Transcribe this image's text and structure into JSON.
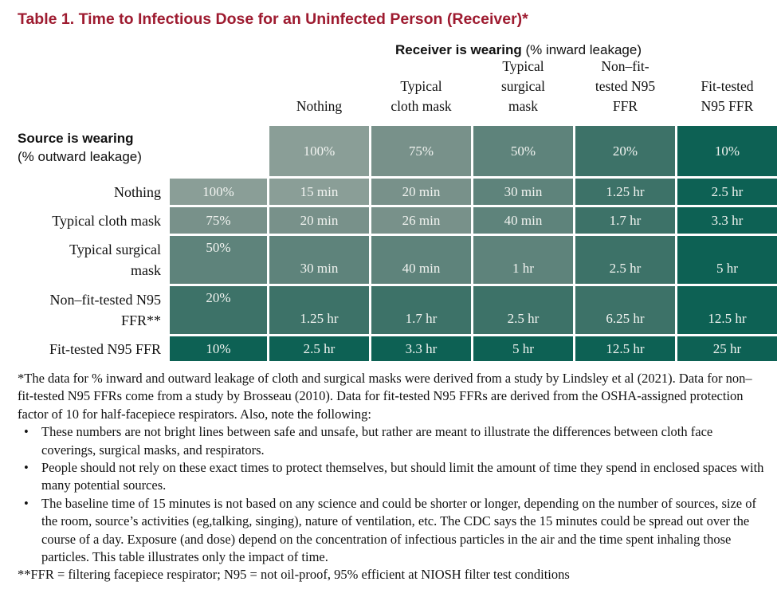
{
  "title": {
    "text": "Table 1. Time to Infectious Dose for an Uninfected Person (Receiver)*"
  },
  "receiver_header": {
    "bold": "Receiver is wearing",
    "normal": " (% inward leakage)"
  },
  "source_header": {
    "bold": "Source is wearing",
    "normal": "(% outward leakage)"
  },
  "columns": [
    {
      "label_lines": [
        "Nothing"
      ],
      "pct": "100%"
    },
    {
      "label_lines": [
        "Typical",
        "cloth mask"
      ],
      "pct": "75%"
    },
    {
      "label_lines": [
        "Typical",
        "surgical",
        "mask"
      ],
      "pct": "50%"
    },
    {
      "label_lines": [
        "Non–fit-",
        "tested N95",
        "FFR"
      ],
      "pct": "20%"
    },
    {
      "label_lines": [
        "Fit-tested",
        "N95 FFR"
      ],
      "pct": "10%"
    }
  ],
  "rows": [
    {
      "label_lines": [
        "Nothing"
      ],
      "pct": "100%",
      "values": [
        "15 min",
        "20 min",
        "30 min",
        "1.25 hr",
        "2.5 hr"
      ]
    },
    {
      "label_lines": [
        "Typical cloth mask"
      ],
      "pct": "75%",
      "values": [
        "20 min",
        "26 min",
        "40 min",
        "1.7 hr",
        "3.3 hr"
      ]
    },
    {
      "label_lines": [
        "Typical surgical",
        "mask"
      ],
      "pct": "50%",
      "values": [
        "30 min",
        "40 min",
        "1 hr",
        "2.5 hr",
        "5 hr"
      ]
    },
    {
      "label_lines": [
        "Non–fit-tested N95",
        "FFR**"
      ],
      "pct": "20%",
      "values": [
        "1.25 hr",
        "1.7 hr",
        "2.5 hr",
        "6.25 hr",
        "12.5 hr"
      ]
    },
    {
      "label_lines": [
        "Fit-tested N95 FFR"
      ],
      "pct": "10%",
      "values": [
        "2.5 hr",
        "3.3 hr",
        "5 hr",
        "12.5 hr",
        "25 hr"
      ]
    }
  ],
  "colors": {
    "title": "#9E1B30",
    "levels": [
      "#8A9E97",
      "#78918A",
      "#5E837B",
      "#3D7268",
      "#0D6154"
    ]
  },
  "footnotes": {
    "note1": "*The data for % inward and outward leakage of cloth and surgical masks were derived from a study by Lindsley et al (2021). Data for non–fit-tested N95 FFRs come from a study by Brosseau (2010). Data for fit-tested N95 FFRs are derived from the OSHA-assigned protection factor of 10 for half-facepiece respirators. Also, note the following:",
    "bullet_char": "•",
    "bullets": [
      "These numbers are not bright lines between safe and unsafe, but rather are meant to illustrate the differences between cloth face coverings, surgical masks, and respirators.",
      "People should not rely on these exact times to protect themselves, but should limit the amount of time they spend in enclosed spaces with many potential sources.",
      "The baseline time of 15 minutes is not based on any science and could be shorter or longer, depending on the number of sources, size of the room, source’s activities (eg,talking, singing), nature of ventilation, etc. The CDC says the 15 minutes could be spread out over the course of a day. Exposure (and dose) depend on the concentration of infectious particles in the air and the time spent inhaling those particles. This table illustrates only the impact of time."
    ],
    "note2": "**FFR = filtering facepiece respirator; N95 = not oil-proof, 95% efficient at NIOSH filter test conditions"
  },
  "chart_data": {
    "type": "table",
    "title": "Table 1. Time to Infectious Dose for an Uninfected Person (Receiver)*",
    "column_axis": "Receiver is wearing (% inward leakage)",
    "row_axis": "Source is wearing (% outward leakage)",
    "categories": [
      "Nothing 100%",
      "Typical cloth mask 75%",
      "Typical surgical mask 50%",
      "Non–fit-tested N95 FFR 20%",
      "Fit-tested N95 FFR 10%"
    ],
    "series": [
      {
        "name": "Nothing 100%",
        "values": [
          "15 min",
          "20 min",
          "30 min",
          "1.25 hr",
          "2.5 hr"
        ]
      },
      {
        "name": "Typical cloth mask 75%",
        "values": [
          "20 min",
          "26 min",
          "40 min",
          "1.7 hr",
          "3.3 hr"
        ]
      },
      {
        "name": "Typical surgical mask 50%",
        "values": [
          "30 min",
          "40 min",
          "1 hr",
          "2.5 hr",
          "5 hr"
        ]
      },
      {
        "name": "Non–fit-tested N95 FFR 20%",
        "values": [
          "1.25 hr",
          "1.7 hr",
          "2.5 hr",
          "6.25 hr",
          "12.5 hr"
        ]
      },
      {
        "name": "Fit-tested N95 FFR 10%",
        "values": [
          "2.5 hr",
          "3.3 hr",
          "5 hr",
          "12.5 hr",
          "25 hr"
        ]
      }
    ]
  }
}
